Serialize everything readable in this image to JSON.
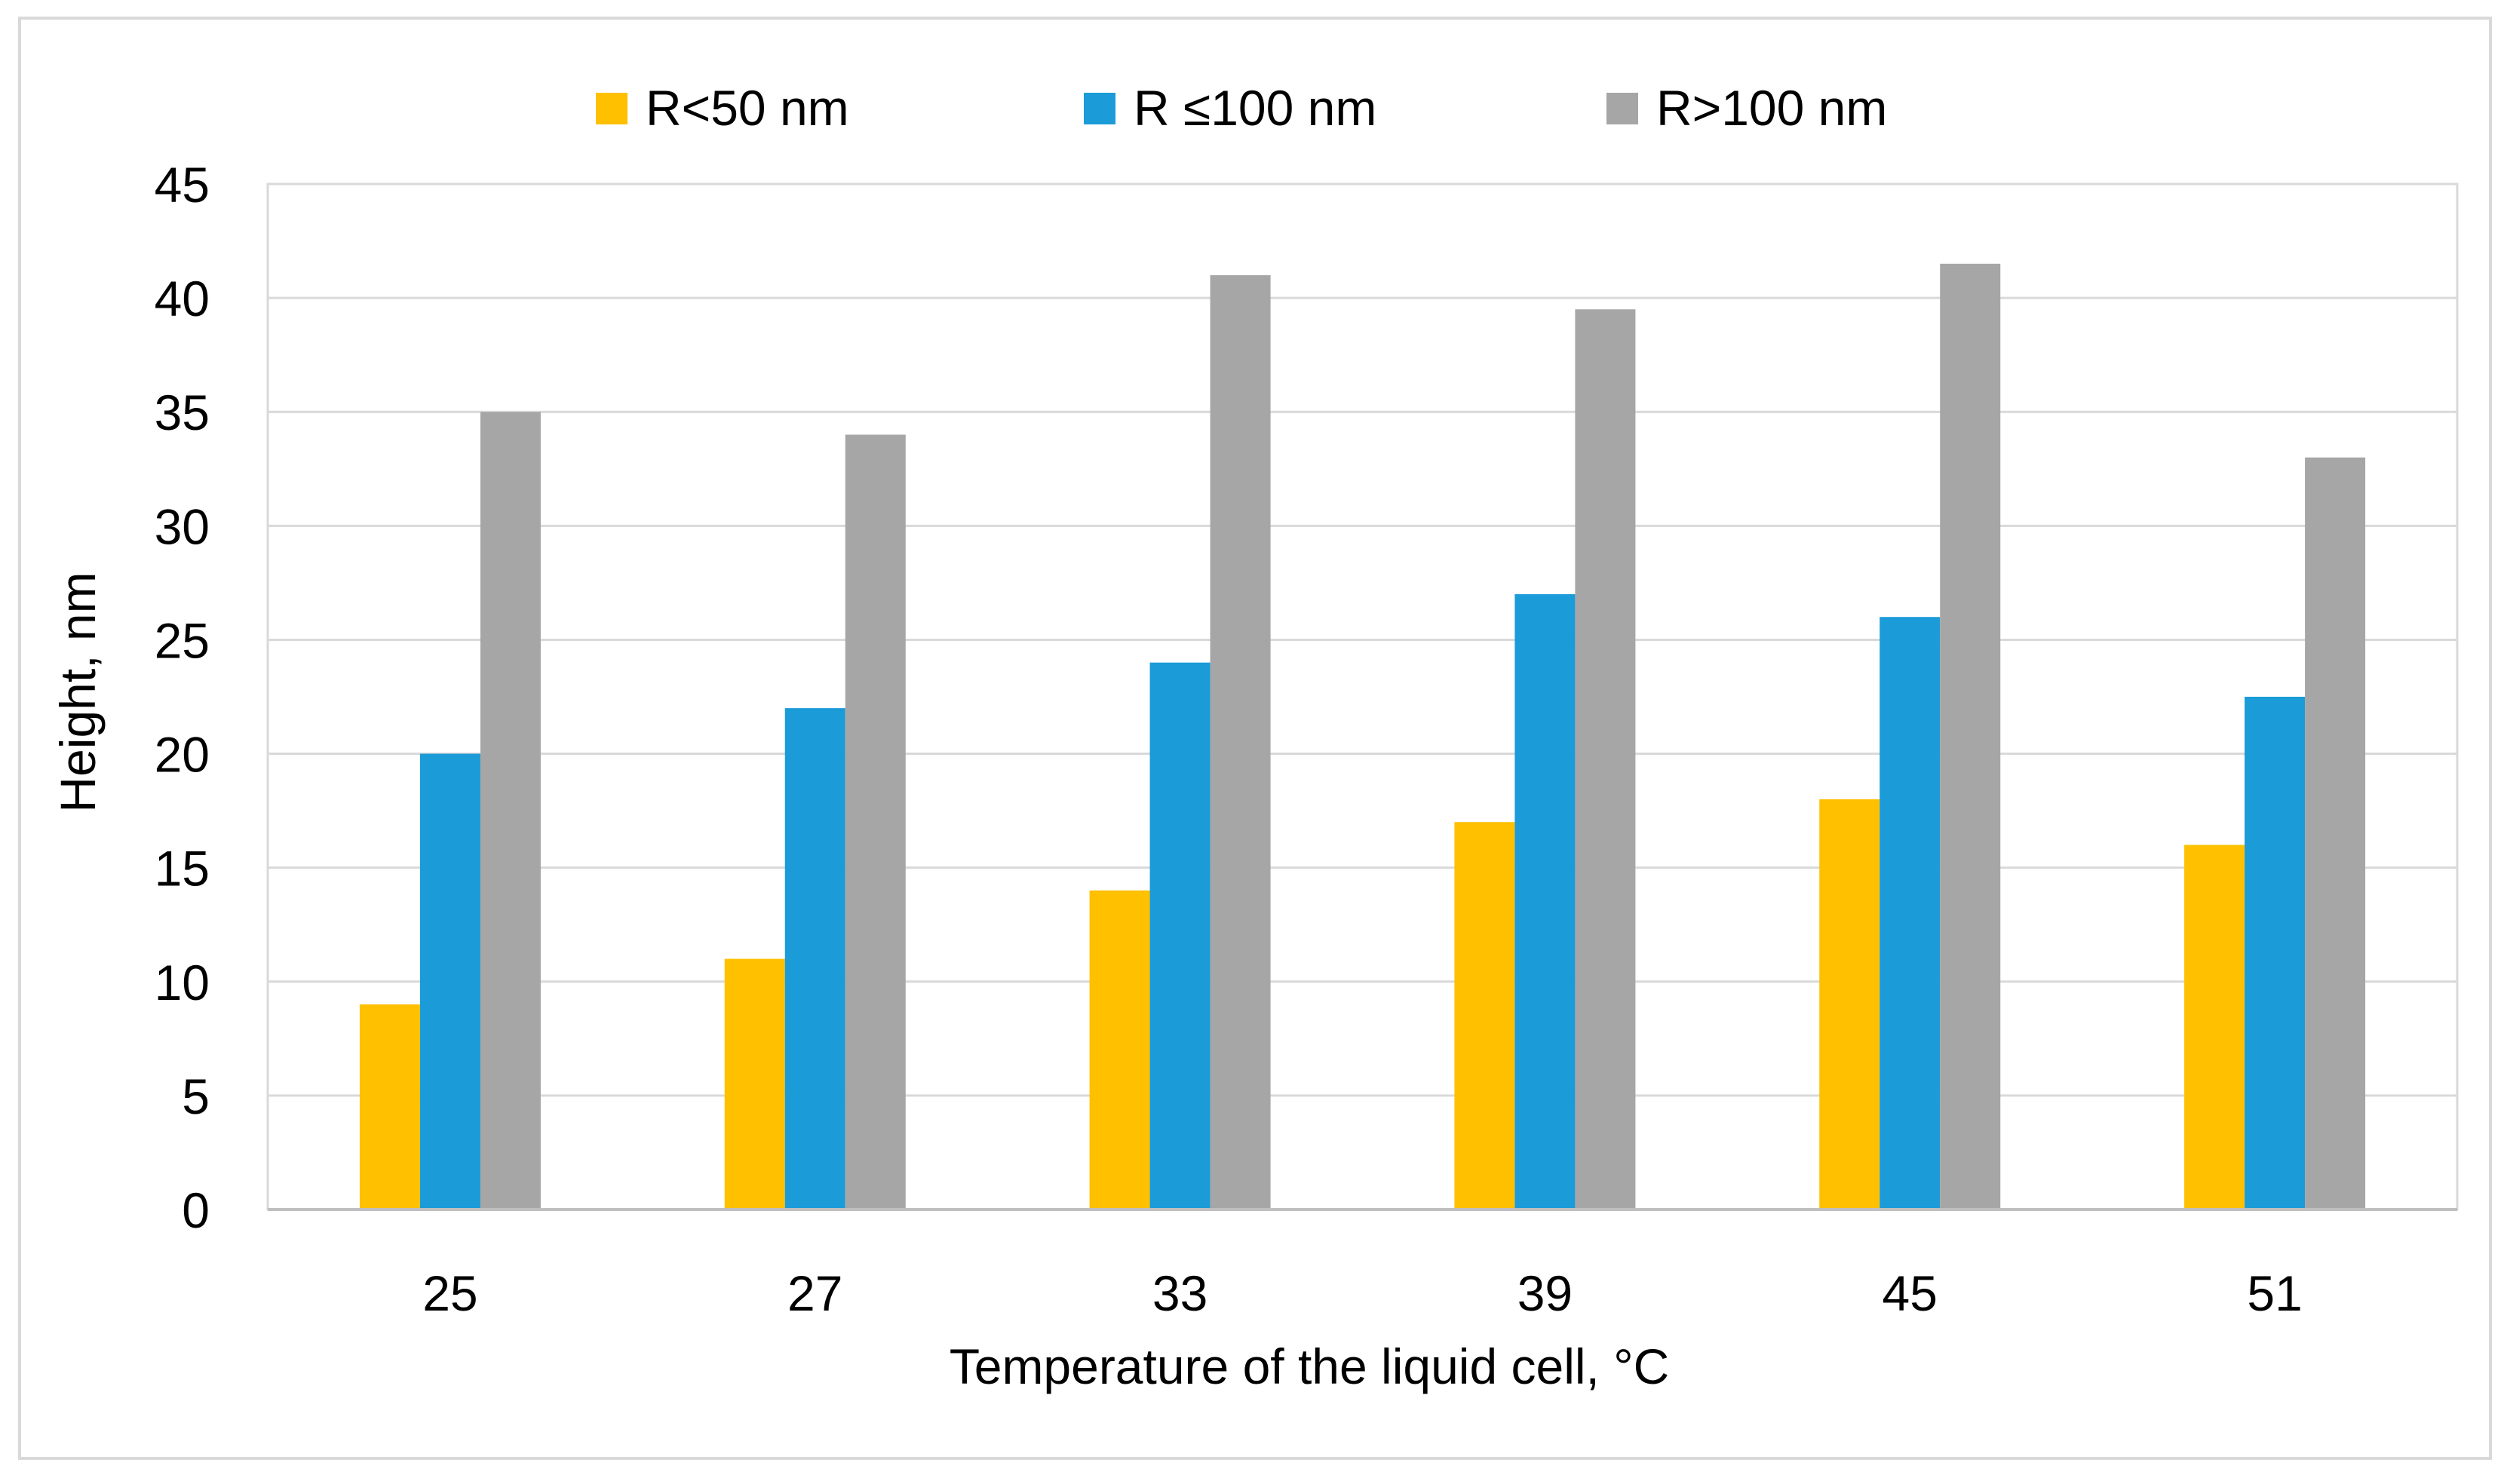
{
  "chart_data": {
    "type": "bar",
    "title": "",
    "categories": [
      "25",
      "27",
      "33",
      "39",
      "45",
      "51"
    ],
    "series": [
      {
        "name": "R<50 nm",
        "color": "#FFC000",
        "values": [
          9,
          11,
          14,
          17,
          18,
          16
        ]
      },
      {
        "name": "R ≤100 nm",
        "color": "#1B9BD8",
        "values": [
          20,
          22,
          24,
          27,
          26,
          22.5
        ]
      },
      {
        "name": "R>100 nm",
        "color": "#A6A6A6",
        "values": [
          35,
          34,
          41,
          39.5,
          41.5,
          33
        ]
      }
    ],
    "xlabel": "Temperature of the liquid cell, °C",
    "ylabel": "Height, nm",
    "ylim": [
      0,
      45
    ],
    "yticks": [
      "0",
      "5",
      "10",
      "15",
      "20",
      "25",
      "30",
      "35",
      "40",
      "45"
    ],
    "grid": true,
    "legend_position": "top-center"
  }
}
